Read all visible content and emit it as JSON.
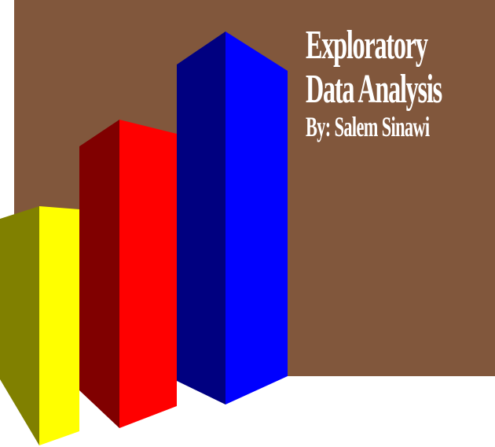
{
  "title": {
    "line1": "Exploratory",
    "line2": "Data Analysis"
  },
  "byline": "By: Salem Sinawi",
  "colors": {
    "panel": "#81573c",
    "text": "#ffffff",
    "yellow_front": "#ffff00",
    "yellow_side": "#808000",
    "red_front": "#ff0000",
    "red_side": "#800000",
    "blue_front": "#0000ff",
    "blue_side": "#000080"
  }
}
